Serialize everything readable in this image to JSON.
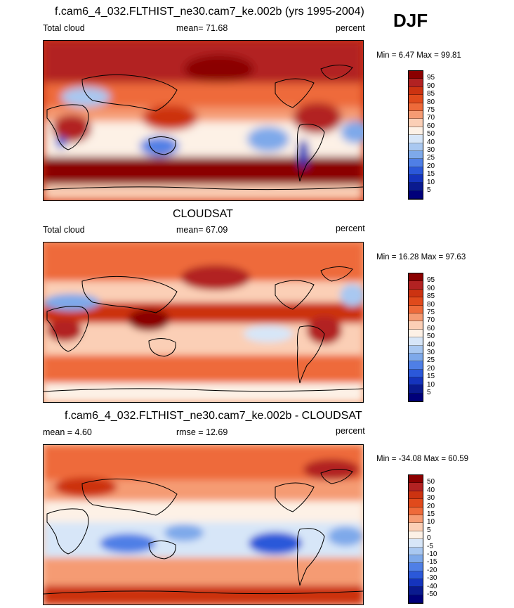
{
  "season": "DJF",
  "panels": [
    {
      "title": "f.cam6_4_032.FLTHIST_ne30.cam7_ke.002b (yrs 1995-2004)",
      "left_label": "Total cloud",
      "center_label": "mean=  71.68",
      "right_label": "percent",
      "minmax": "Min =   6.47 Max =  99.81",
      "colorbar": {
        "levels": [
          "95",
          "90",
          "85",
          "80",
          "75",
          "70",
          "60",
          "50",
          "40",
          "30",
          "25",
          "20",
          "15",
          "10",
          "5"
        ],
        "colors": [
          "#8b0000",
          "#b22222",
          "#cc3311",
          "#e04a1c",
          "#ee6a3a",
          "#f59b73",
          "#fbcfb6",
          "#fdf1e6",
          "#d7e6f8",
          "#a9c8f1",
          "#7ea9ea",
          "#4f7fe6",
          "#2b58d9",
          "#1534bd",
          "#0a1a8f",
          "#00007a"
        ]
      }
    },
    {
      "title": "CLOUDSAT",
      "left_label": "Total cloud",
      "center_label": "mean=  67.09",
      "right_label": "percent",
      "minmax": "Min =  16.28 Max =  97.63",
      "colorbar": {
        "levels": [
          "95",
          "90",
          "85",
          "80",
          "75",
          "70",
          "60",
          "50",
          "40",
          "30",
          "25",
          "20",
          "15",
          "10",
          "5"
        ],
        "colors": [
          "#8b0000",
          "#b22222",
          "#cc3311",
          "#e04a1c",
          "#ee6a3a",
          "#f59b73",
          "#fbcfb6",
          "#fdf1e6",
          "#d7e6f8",
          "#a9c8f1",
          "#7ea9ea",
          "#4f7fe6",
          "#2b58d9",
          "#1534bd",
          "#0a1a8f",
          "#00007a"
        ]
      }
    },
    {
      "title": "f.cam6_4_032.FLTHIST_ne30.cam7_ke.002b - CLOUDSAT",
      "left_label": "mean =   4.60",
      "center_label": "rmse =  12.69",
      "right_label": "percent",
      "minmax": "Min = -34.08 Max =  60.59",
      "colorbar": {
        "levels": [
          "50",
          "40",
          "30",
          "20",
          "15",
          "10",
          "5",
          "0",
          "-5",
          "-10",
          "-15",
          "-20",
          "-30",
          "-40",
          "-50"
        ],
        "colors": [
          "#8b0000",
          "#b22222",
          "#cc3311",
          "#e04a1c",
          "#ee6a3a",
          "#f59b73",
          "#fbcfb6",
          "#fdf1e6",
          "#d7e6f8",
          "#a9c8f1",
          "#7ea9ea",
          "#4f7fe6",
          "#2b58d9",
          "#1534bd",
          "#0a1a8f",
          "#00007a"
        ]
      }
    }
  ]
}
